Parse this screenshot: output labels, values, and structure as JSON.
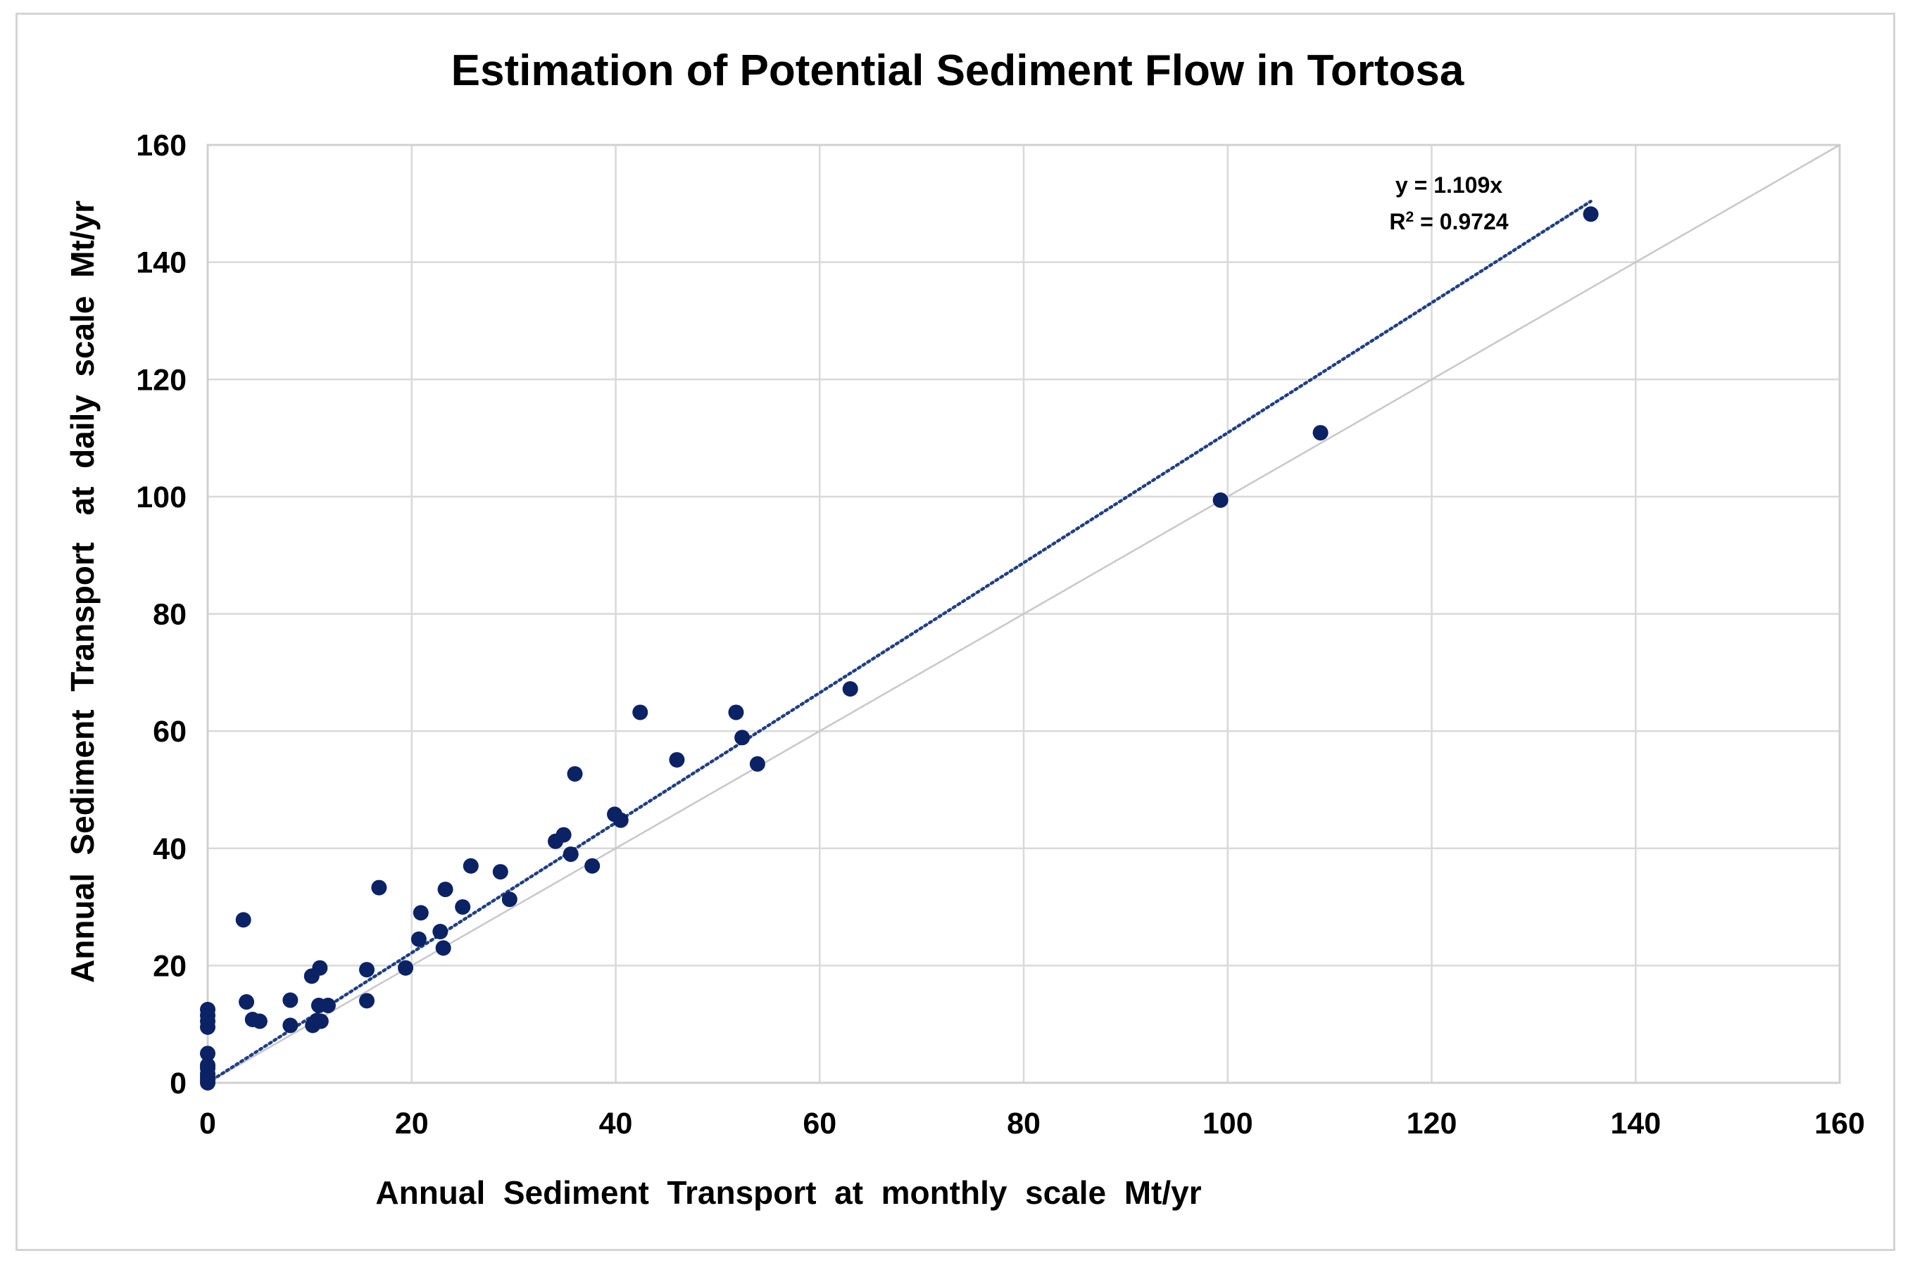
{
  "chart_data": {
    "type": "scatter",
    "title": "Estimation of Potential Sediment Flow in Tortosa",
    "xlabel": "Annual  Sediment  Transport  at  monthly  scale  Mt/yr",
    "ylabel": "Annual  Sediment  Transport   at  daily  scale  Mt/yr",
    "xlim": [
      0,
      160
    ],
    "ylim": [
      0,
      160
    ],
    "xticks": [
      0,
      20,
      40,
      60,
      80,
      100,
      120,
      140,
      160
    ],
    "yticks": [
      0,
      20,
      40,
      60,
      80,
      100,
      120,
      140,
      160
    ],
    "grid": true,
    "legend": "none",
    "marker_color": "#0b2265",
    "trendline": {
      "type": "linear-through-origin",
      "slope": 1.109,
      "x_range": [
        0,
        135.6
      ],
      "color": "#1f3f86",
      "style": "dotted",
      "equation": "y = 1.109x",
      "r2_prefix": "R",
      "r2_sup": "2",
      "r2_value": " = 0.9724"
    },
    "reference_line": {
      "type": "y=x",
      "color": "#c8c8c8"
    },
    "points": [
      [
        0,
        0
      ],
      [
        0,
        0.5
      ],
      [
        0,
        1
      ],
      [
        0,
        1.5
      ],
      [
        0,
        2.5
      ],
      [
        0,
        3
      ],
      [
        0,
        5
      ],
      [
        0,
        9.5
      ],
      [
        0,
        10.5
      ],
      [
        0,
        11.5
      ],
      [
        0,
        12.5
      ],
      [
        3.5,
        27.8
      ],
      [
        3.8,
        13.8
      ],
      [
        4.4,
        10.8
      ],
      [
        5.1,
        10.5
      ],
      [
        8.1,
        9.8
      ],
      [
        8.1,
        14.1
      ],
      [
        10.2,
        18.2
      ],
      [
        10.3,
        9.8
      ],
      [
        10.7,
        10.6
      ],
      [
        10.9,
        13.2
      ],
      [
        11.0,
        19.6
      ],
      [
        11.1,
        10.5
      ],
      [
        11.8,
        13.2
      ],
      [
        15.6,
        19.3
      ],
      [
        15.6,
        14.0
      ],
      [
        16.8,
        33.3
      ],
      [
        19.4,
        19.6
      ],
      [
        20.7,
        24.5
      ],
      [
        20.9,
        29.0
      ],
      [
        22.8,
        25.8
      ],
      [
        23.1,
        23.0
      ],
      [
        23.3,
        33.0
      ],
      [
        25.0,
        30.0
      ],
      [
        25.8,
        37.0
      ],
      [
        28.7,
        36.0
      ],
      [
        29.6,
        31.3
      ],
      [
        34.1,
        41.2
      ],
      [
        34.9,
        42.3
      ],
      [
        35.6,
        39.0
      ],
      [
        36.0,
        52.7
      ],
      [
        37.7,
        37.0
      ],
      [
        39.9,
        45.8
      ],
      [
        40.5,
        44.8
      ],
      [
        42.4,
        63.2
      ],
      [
        46.0,
        55.1
      ],
      [
        51.8,
        63.2
      ],
      [
        52.4,
        58.9
      ],
      [
        53.9,
        54.4
      ],
      [
        63.0,
        67.2
      ],
      [
        99.3,
        99.4
      ],
      [
        109.1,
        110.9
      ],
      [
        135.6,
        148.2
      ]
    ]
  }
}
